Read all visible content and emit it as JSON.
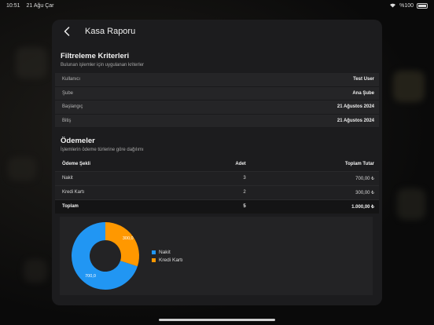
{
  "status_bar": {
    "time": "10:51",
    "date": "21 Ağu Çar",
    "battery": "%100"
  },
  "nav": {
    "title": "Kasa Raporu"
  },
  "filters": {
    "title": "Filtreleme Kriterleri",
    "subtitle": "Bulunan işlemler için uygulanan kriterler",
    "rows": [
      {
        "key": "Kullanıcı",
        "value": "Test User"
      },
      {
        "key": "Şube",
        "value": "Ana Şube"
      },
      {
        "key": "Başlangıç",
        "value": "21 Ağustos 2024"
      },
      {
        "key": "Bitiş",
        "value": "21 Ağustos 2024"
      }
    ]
  },
  "payments": {
    "title": "Ödemeler",
    "subtitle": "İşlemlerin ödeme türlerine göre dağılımı",
    "headers": {
      "method": "Ödeme Şekli",
      "count": "Adet",
      "total": "Toplam Tutar"
    },
    "rows": [
      {
        "method": "Nakit",
        "count": "3",
        "total": "700,00 ₺"
      },
      {
        "method": "Kredi Kartı",
        "count": "2",
        "total": "300,00 ₺"
      }
    ],
    "footer": {
      "method": "Toplam",
      "count": "5",
      "total": "1.000,00 ₺"
    }
  },
  "chart_data": {
    "type": "pie",
    "categories": [
      "Nakit",
      "Kredi Kartı"
    ],
    "values": [
      700,
      300
    ],
    "slice_labels": [
      "700,0",
      "300,0"
    ],
    "colors": [
      "#2196f3",
      "#ff9800"
    ],
    "donut": true,
    "legend_position": "right"
  }
}
